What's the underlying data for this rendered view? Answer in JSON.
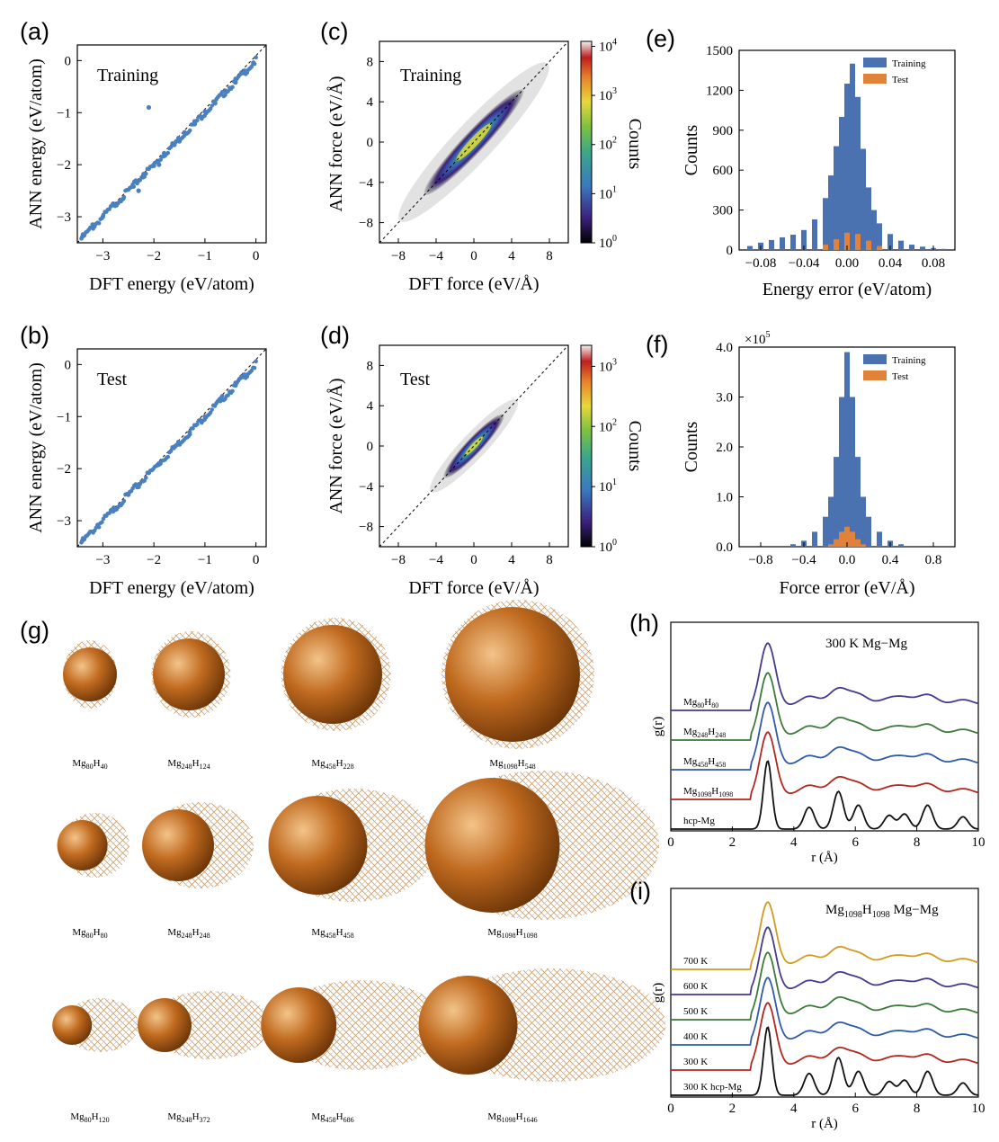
{
  "colors": {
    "training": "#4a72b0",
    "test": "#e0823a",
    "scatter": "#4a80bf",
    "orange_atom": "#c06a1f",
    "rdf": [
      "#453a8f",
      "#3c7a3a",
      "#2f5aa8",
      "#b3261e",
      "#111111"
    ],
    "rdf_i": [
      "#d39a1e",
      "#453a8f",
      "#3c7a3a",
      "#2f5aa8",
      "#b3261e",
      "#111111"
    ]
  },
  "panels": {
    "a": {
      "letter": "(a)",
      "label": "Training",
      "xlabel": "DFT energy (eV/atom)",
      "ylabel": "ANN energy (eV/atom)"
    },
    "b": {
      "letter": "(b)",
      "label": "Test",
      "xlabel": "DFT energy (eV/atom)",
      "ylabel": "ANN energy (eV/atom)"
    },
    "c": {
      "letter": "(c)",
      "label": "Training",
      "xlabel": "DFT force (eV/Å)",
      "ylabel": "ANN force (eV/Å)",
      "cbar_label": "Counts"
    },
    "d": {
      "letter": "(d)",
      "label": "Test",
      "xlabel": "DFT force (eV/Å)",
      "ylabel": "ANN force (eV/Å)",
      "cbar_label": "Counts"
    },
    "e": {
      "letter": "(e)",
      "xlabel": "Energy error (eV/atom)",
      "ylabel": "Counts",
      "legend": [
        "Training",
        "Test"
      ]
    },
    "f": {
      "letter": "(f)",
      "xlabel": "Force error (eV/Å)",
      "ylabel": "Counts",
      "legend": [
        "Training",
        "Test"
      ],
      "multiplier_base": "×10",
      "multiplier_exp": "5"
    },
    "g": {
      "letter": "(g)"
    },
    "h": {
      "letter": "(h)",
      "title": "300 K  Mg−Mg",
      "xlabel": "r (Å)",
      "ylabel": "g(r)"
    },
    "i": {
      "letter": "(i)",
      "title_mg": "Mg",
      "title_sub1": "1098",
      "title_h": "H",
      "title_sub2": "1098",
      "title_rest": "  Mg−Mg",
      "xlabel": "r (Å)",
      "ylabel": "g(r)"
    }
  },
  "clusters": [
    [
      {
        "mg": "80",
        "h": "40"
      },
      {
        "mg": "248",
        "h": "124"
      },
      {
        "mg": "458",
        "h": "228"
      },
      {
        "mg": "1098",
        "h": "548"
      }
    ],
    [
      {
        "mg": "80",
        "h": "80"
      },
      {
        "mg": "248",
        "h": "248"
      },
      {
        "mg": "458",
        "h": "458"
      },
      {
        "mg": "1098",
        "h": "1098"
      }
    ],
    [
      {
        "mg": "80",
        "h": "120"
      },
      {
        "mg": "248",
        "h": "372"
      },
      {
        "mg": "458",
        "h": "686"
      },
      {
        "mg": "1098",
        "h": "1646"
      }
    ]
  ],
  "chart_data": [
    {
      "panel": "a",
      "type": "scatter",
      "title": "Training",
      "xlabel": "DFT energy (eV/atom)",
      "ylabel": "ANN energy (eV/atom)",
      "xlim": [
        -3.5,
        0.2
      ],
      "ylim": [
        -3.5,
        0.3
      ],
      "xticks": [
        -3,
        -2,
        -1,
        0
      ],
      "yticks": [
        -3,
        -2,
        -1,
        0
      ],
      "x": [
        -3.4,
        -3.2,
        -3.0,
        -2.8,
        -2.6,
        -2.4,
        -2.2,
        -2.0,
        -1.8,
        -1.6,
        -1.4,
        -1.2,
        -1.0,
        -0.8,
        -0.6,
        -0.4,
        -0.2,
        -0.05,
        -2.1,
        -2.3,
        -1.9,
        -1.5
      ],
      "y": [
        -3.38,
        -3.15,
        -3.0,
        -2.75,
        -2.65,
        -2.42,
        -2.18,
        -2.02,
        -1.78,
        -1.62,
        -1.38,
        -1.22,
        -0.98,
        -0.82,
        -0.58,
        -0.42,
        -0.2,
        -0.04,
        -0.9,
        -2.5,
        -2.0,
        -1.55
      ]
    },
    {
      "panel": "b",
      "type": "scatter",
      "title": "Test",
      "xlabel": "DFT energy (eV/atom)",
      "ylabel": "ANN energy (eV/atom)",
      "xlim": [
        -3.5,
        0.2
      ],
      "ylim": [
        -3.5,
        0.3
      ],
      "xticks": [
        -3,
        -2,
        -1,
        0
      ],
      "yticks": [
        -3,
        -2,
        -1,
        0
      ],
      "x": [
        -3.4,
        -3.1,
        -2.8,
        -2.5,
        -2.3,
        -2.1,
        -1.9,
        -1.6,
        -1.3,
        -1.0,
        -0.7,
        -0.4,
        -0.2
      ],
      "y": [
        -3.38,
        -3.08,
        -2.82,
        -2.5,
        -2.35,
        -2.08,
        -1.9,
        -1.58,
        -1.3,
        -1.0,
        -0.7,
        -0.4,
        -0.2
      ]
    },
    {
      "panel": "c",
      "type": "heatmap",
      "title": "Training",
      "xlabel": "DFT force (eV/Å)",
      "ylabel": "ANN force (eV/Å)",
      "xlim": [
        -10,
        10
      ],
      "ylim": [
        -10,
        10
      ],
      "xticks": [
        -8,
        -4,
        0,
        4,
        8
      ],
      "yticks": [
        -8,
        -4,
        0,
        4,
        8
      ],
      "colorbar": {
        "label": "Counts",
        "ticks": [
          "10^0",
          "10^1",
          "10^2",
          "10^3",
          "10^4"
        ]
      }
    },
    {
      "panel": "d",
      "type": "heatmap",
      "title": "Test",
      "xlabel": "DFT force (eV/Å)",
      "ylabel": "ANN force (eV/Å)",
      "xlim": [
        -10,
        10
      ],
      "ylim": [
        -10,
        10
      ],
      "xticks": [
        -8,
        -4,
        0,
        4,
        8
      ],
      "yticks": [
        -8,
        -4,
        0,
        4,
        8
      ],
      "colorbar": {
        "label": "Counts",
        "ticks": [
          "10^0",
          "10^1",
          "10^2",
          "10^3"
        ]
      }
    },
    {
      "panel": "e",
      "type": "bar",
      "xlabel": "Energy error (eV/atom)",
      "ylabel": "Counts",
      "xlim": [
        -0.1,
        0.1
      ],
      "ylim": [
        0,
        1500
      ],
      "xticks": [
        -0.08,
        -0.04,
        0.0,
        0.04,
        0.08
      ],
      "yticks": [
        0,
        300,
        600,
        900,
        1200,
        1500
      ],
      "series": [
        {
          "name": "Training",
          "x": [
            -0.09,
            -0.08,
            -0.07,
            -0.06,
            -0.05,
            -0.04,
            -0.03,
            -0.02,
            -0.015,
            -0.01,
            -0.005,
            0.0,
            0.005,
            0.01,
            0.015,
            0.02,
            0.025,
            0.03,
            0.04,
            0.05,
            0.06,
            0.07,
            0.08,
            0.09
          ],
          "values": [
            30,
            55,
            75,
            95,
            115,
            150,
            230,
            390,
            560,
            780,
            1000,
            1250,
            1400,
            1150,
            760,
            470,
            300,
            200,
            120,
            70,
            40,
            25,
            15,
            8
          ]
        },
        {
          "name": "Test",
          "x": [
            -0.02,
            -0.01,
            0.0,
            0.01,
            0.02,
            0.03
          ],
          "values": [
            40,
            80,
            130,
            120,
            70,
            30
          ]
        }
      ]
    },
    {
      "panel": "f",
      "type": "bar",
      "xlabel": "Force error (eV/Å)",
      "ylabel": "Counts",
      "y_multiplier": "×10^5",
      "xlim": [
        -1.0,
        1.0
      ],
      "ylim": [
        0,
        4.0
      ],
      "xticks": [
        -0.8,
        -0.4,
        0.0,
        0.4,
        0.8
      ],
      "yticks": [
        0.0,
        1.0,
        2.0,
        3.0,
        4.0
      ],
      "series": [
        {
          "name": "Training",
          "x": [
            -0.5,
            -0.4,
            -0.3,
            -0.2,
            -0.15,
            -0.1,
            -0.05,
            0.0,
            0.05,
            0.1,
            0.15,
            0.2,
            0.3,
            0.4,
            0.5
          ],
          "values": [
            0.05,
            0.12,
            0.3,
            0.6,
            1.0,
            1.8,
            3.0,
            3.9,
            3.0,
            1.8,
            1.0,
            0.6,
            0.3,
            0.12,
            0.05
          ]
        },
        {
          "name": "Test",
          "x": [
            -0.15,
            -0.1,
            -0.05,
            0.0,
            0.05,
            0.1,
            0.15
          ],
          "values": [
            0.05,
            0.15,
            0.3,
            0.4,
            0.3,
            0.15,
            0.05
          ]
        }
      ]
    },
    {
      "panel": "h",
      "type": "line",
      "title": "300 K  Mg−Mg",
      "xlabel": "r (Å)",
      "ylabel": "g(r)",
      "xlim": [
        0,
        10
      ],
      "xticks": [
        0,
        2,
        4,
        6,
        8,
        10
      ],
      "series": [
        {
          "name_mg": "Mg",
          "name_sub1": "80",
          "name_h": "H",
          "name_sub2": "80"
        },
        {
          "name_mg": "Mg",
          "name_sub1": "248",
          "name_h": "H",
          "name_sub2": "248"
        },
        {
          "name_mg": "Mg",
          "name_sub1": "458",
          "name_h": "H",
          "name_sub2": "458"
        },
        {
          "name_mg": "Mg",
          "name_sub1": "1098",
          "name_h": "H",
          "name_sub2": "1098"
        },
        {
          "name_mg": "hcp-Mg",
          "name_sub1": "",
          "name_h": "",
          "name_sub2": ""
        }
      ]
    },
    {
      "panel": "i",
      "type": "line",
      "title": "Mg1098H1098  Mg−Mg",
      "xlabel": "r (Å)",
      "ylabel": "g(r)",
      "xlim": [
        0,
        10
      ],
      "xticks": [
        0,
        2,
        4,
        6,
        8,
        10
      ],
      "series": [
        {
          "name": "700 K"
        },
        {
          "name": "600 K"
        },
        {
          "name": "500 K"
        },
        {
          "name": "400 K"
        },
        {
          "name": "300 K"
        },
        {
          "name": "300 K hcp-Mg"
        }
      ]
    }
  ]
}
